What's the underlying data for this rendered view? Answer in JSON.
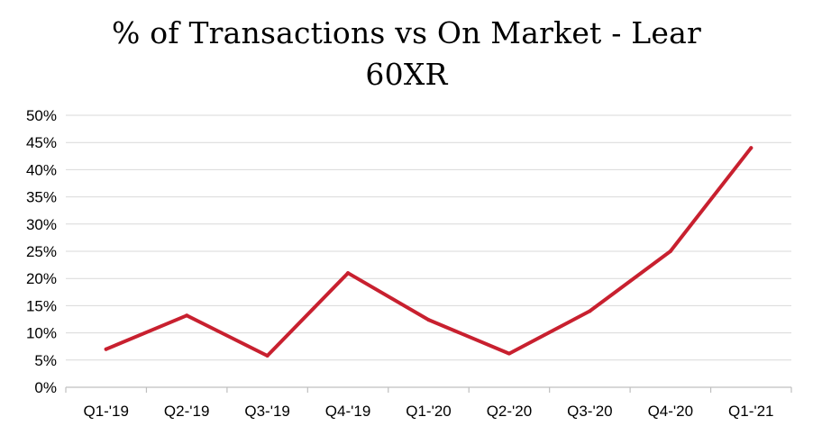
{
  "chart_data": {
    "type": "line",
    "title_line1": "% of Transactions vs On Market - Lear",
    "title_line2": "60XR",
    "categories": [
      "Q1-'19",
      "Q2-'19",
      "Q3-'19",
      "Q4-'19",
      "Q1-'20",
      "Q2-'20",
      "Q3-'20",
      "Q4-'20",
      "Q1-'21"
    ],
    "series": [
      {
        "values": [
          7.0,
          13.2,
          5.8,
          21.0,
          12.4,
          6.2,
          14.0,
          25.0,
          44.0
        ]
      }
    ],
    "ylim": [
      0,
      50
    ],
    "yticks": [
      0,
      5,
      10,
      15,
      20,
      25,
      30,
      35,
      40,
      45,
      50
    ],
    "ytick_labels": [
      "0%",
      "5%",
      "10%",
      "15%",
      "20%",
      "25%",
      "30%",
      "35%",
      "40%",
      "45%",
      "50%"
    ],
    "grid": true,
    "colors": {
      "line": "#c8202f",
      "grid": "#d9d9d9",
      "axis": "#bfbfbf"
    }
  }
}
